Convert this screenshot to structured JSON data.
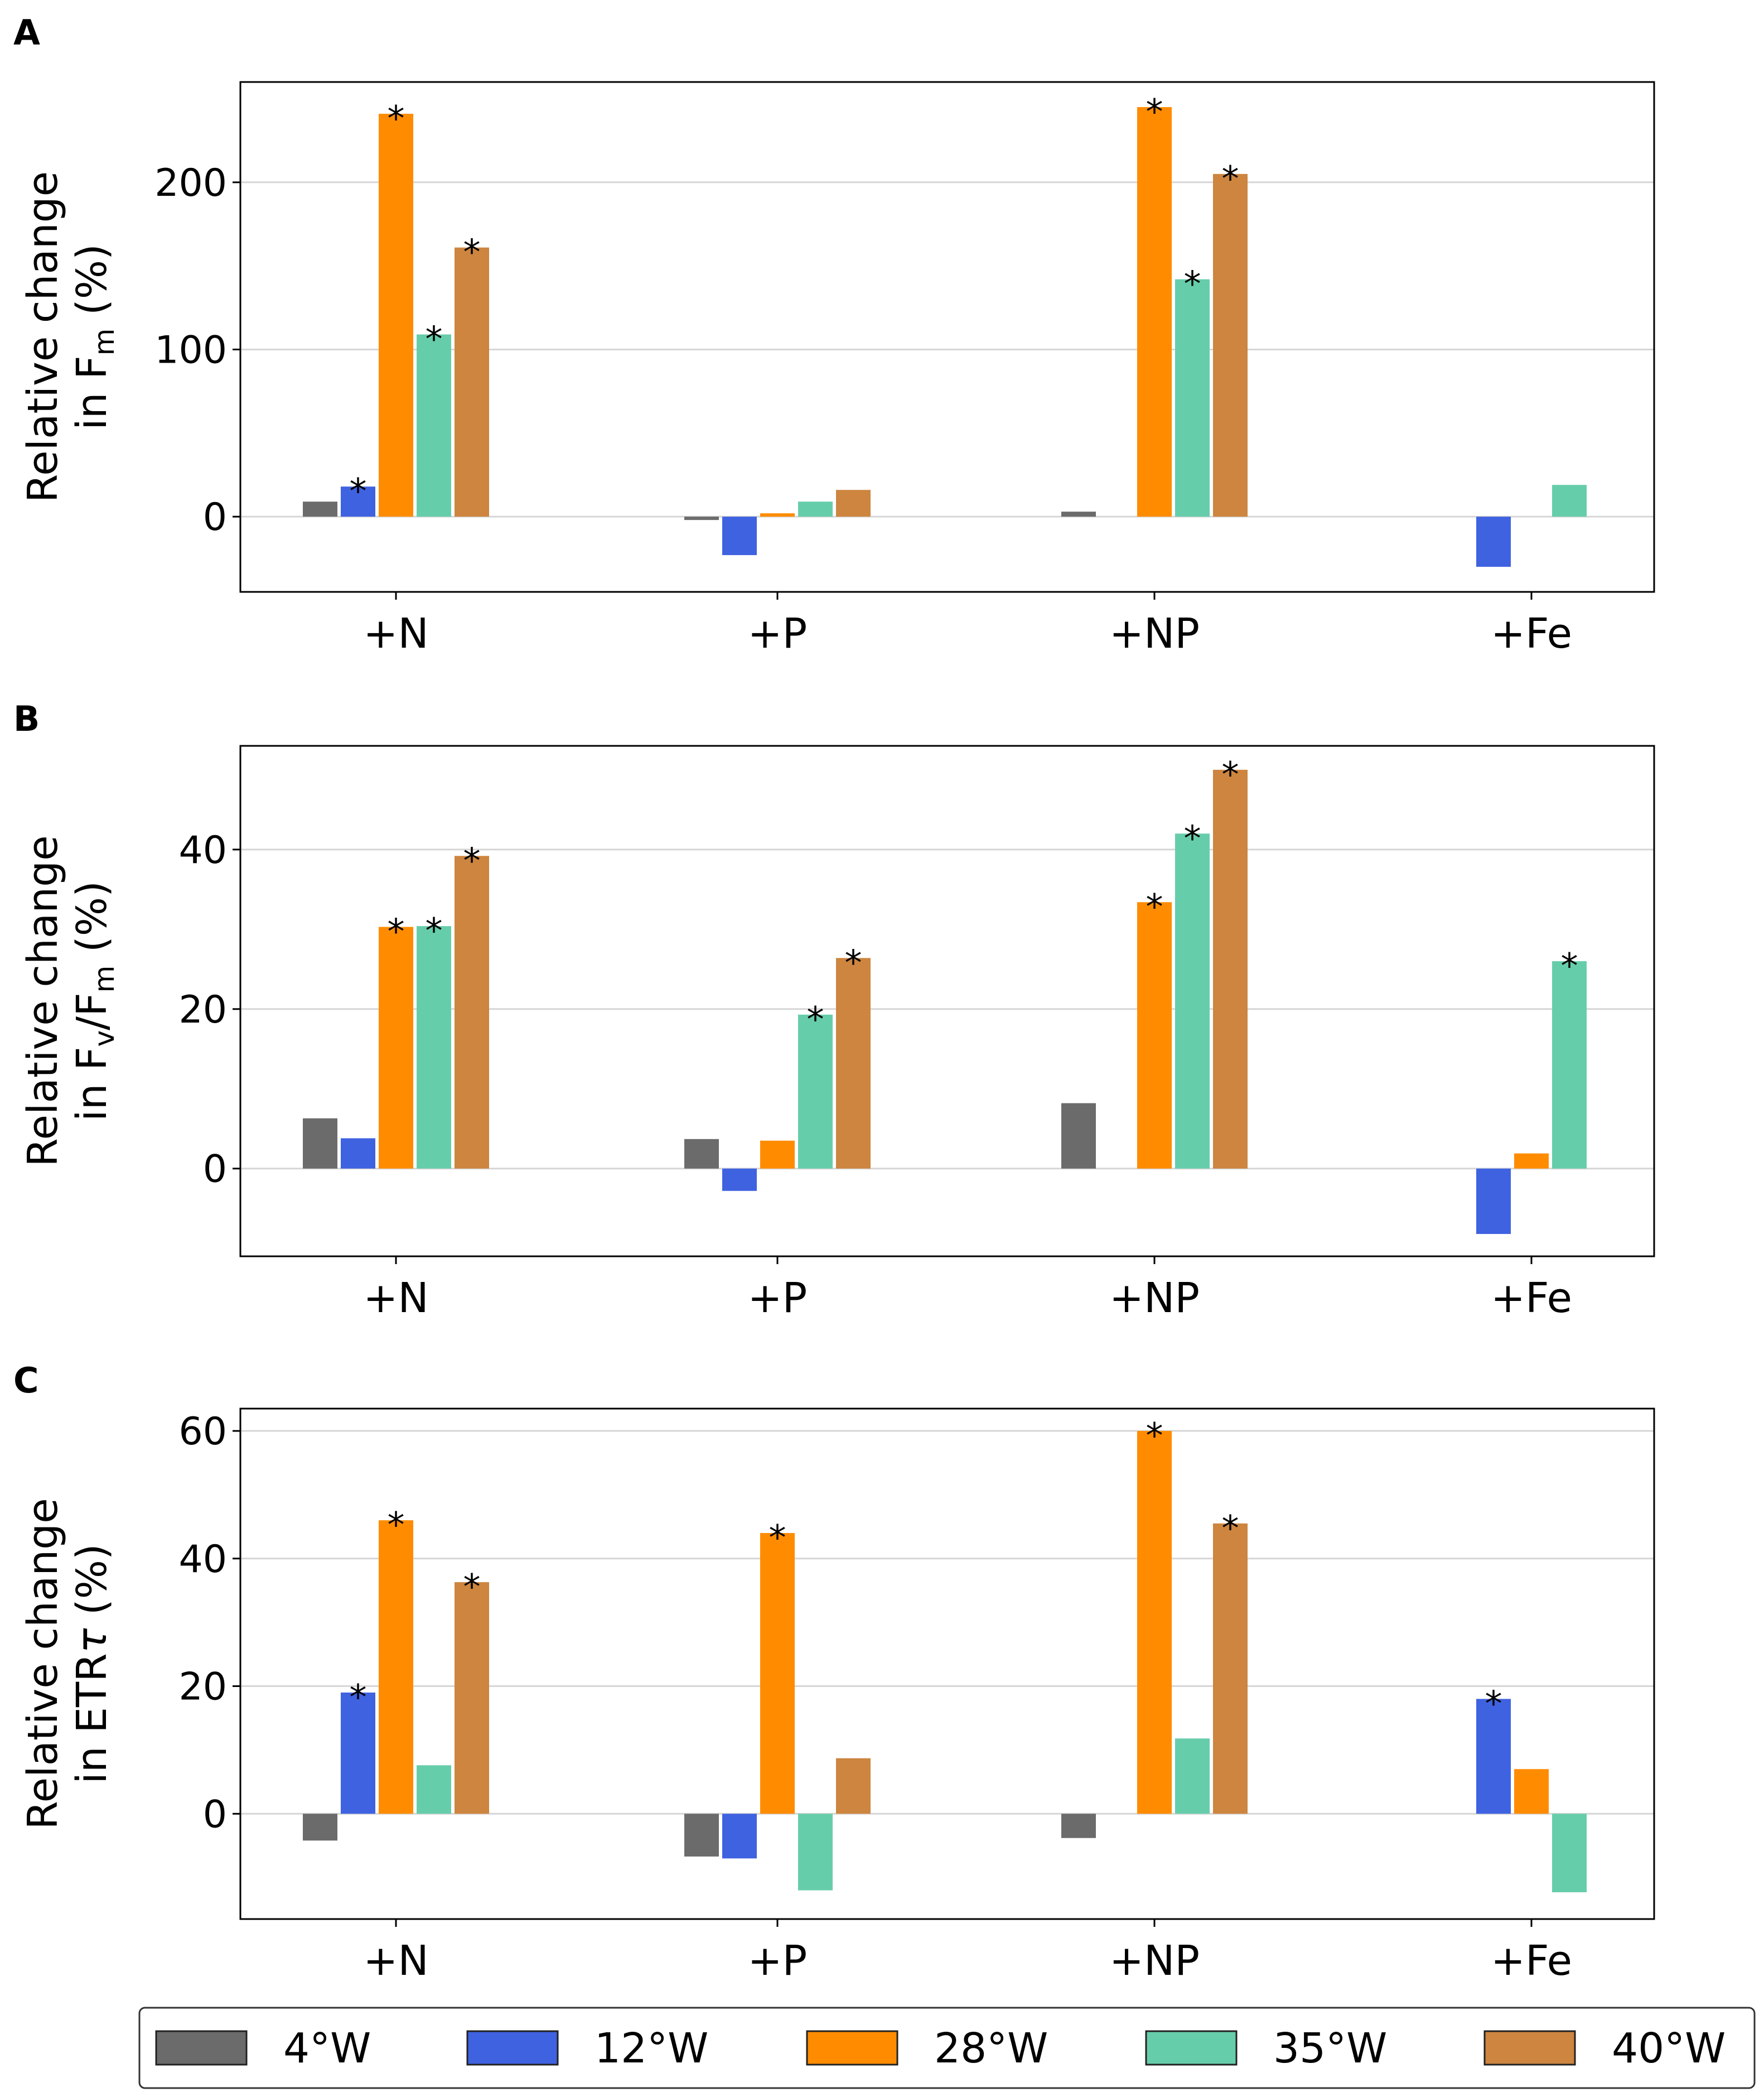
{
  "legend": {
    "items": [
      {
        "label": "4°W",
        "color": "#6b6b6b"
      },
      {
        "label": "12°W",
        "color": "#3f62e0"
      },
      {
        "label": "28°W",
        "color": "#ff8c00"
      },
      {
        "label": "35°W",
        "color": "#66cdaa"
      },
      {
        "label": "40°W",
        "color": "#cd853f"
      }
    ]
  },
  "chart_data": [
    {
      "type": "bar",
      "panel": "A",
      "ylabel": "Relative change",
      "ylabel_line2": {
        "prefix": "in F",
        "sub": "m",
        "suffix": " (%)"
      },
      "categories": [
        "+N",
        "+P",
        "+NP",
        "+Fe"
      ],
      "ylim": [
        -45,
        260
      ],
      "yticks": [
        0,
        100,
        200
      ],
      "series": [
        {
          "name": "4°W",
          "values": [
            9,
            -2,
            3,
            null
          ],
          "sig": [
            false,
            false,
            false,
            false
          ]
        },
        {
          "name": "12°W",
          "values": [
            18,
            -23,
            null,
            -30
          ],
          "sig": [
            true,
            false,
            false,
            false
          ]
        },
        {
          "name": "28°W",
          "values": [
            241,
            2,
            245,
            null
          ],
          "sig": [
            true,
            false,
            true,
            false
          ]
        },
        {
          "name": "35°W",
          "values": [
            109,
            9,
            142,
            19
          ],
          "sig": [
            true,
            false,
            true,
            false
          ]
        },
        {
          "name": "40°W",
          "values": [
            161,
            16,
            205,
            null
          ],
          "sig": [
            true,
            false,
            true,
            false
          ]
        }
      ]
    },
    {
      "type": "bar",
      "panel": "B",
      "ylabel": "Relative change",
      "ylabel_line2": {
        "prefix": "in F",
        "sub": "v",
        "mid": "/F",
        "sub2": "m",
        "suffix": " (%)"
      },
      "categories": [
        "+N",
        "+P",
        "+NP",
        "+Fe"
      ],
      "ylim": [
        -11,
        53
      ],
      "yticks": [
        0,
        20,
        40
      ],
      "series": [
        {
          "name": "4°W",
          "values": [
            6.3,
            3.7,
            8.2,
            null
          ],
          "sig": [
            false,
            false,
            false,
            false
          ]
        },
        {
          "name": "12°W",
          "values": [
            3.8,
            -2.8,
            null,
            -8.2
          ],
          "sig": [
            false,
            false,
            false,
            false
          ]
        },
        {
          "name": "28°W",
          "values": [
            30.3,
            3.5,
            33.4,
            1.9
          ],
          "sig": [
            true,
            false,
            true,
            false
          ]
        },
        {
          "name": "35°W",
          "values": [
            30.4,
            19.3,
            42.0,
            26.0
          ],
          "sig": [
            true,
            true,
            true,
            true
          ]
        },
        {
          "name": "40°W",
          "values": [
            39.2,
            26.4,
            50.0,
            null
          ],
          "sig": [
            true,
            true,
            true,
            false
          ]
        }
      ]
    },
    {
      "type": "bar",
      "panel": "C",
      "ylabel": "Relative change",
      "ylabel_line2": {
        "prefix": "in ETR",
        "tau": "τ",
        "suffix": " (%)"
      },
      "categories": [
        "+N",
        "+P",
        "+NP",
        "+Fe"
      ],
      "ylim": [
        -16.5,
        63.5
      ],
      "yticks": [
        0,
        20,
        40,
        60
      ],
      "series": [
        {
          "name": "4°W",
          "values": [
            -4.2,
            -6.7,
            -3.8,
            null
          ],
          "sig": [
            false,
            false,
            false,
            false
          ]
        },
        {
          "name": "12°W",
          "values": [
            19.0,
            -7.0,
            null,
            18.0
          ],
          "sig": [
            true,
            false,
            false,
            true
          ]
        },
        {
          "name": "28°W",
          "values": [
            46.0,
            44.0,
            60.0,
            7.0
          ],
          "sig": [
            true,
            true,
            true,
            false
          ]
        },
        {
          "name": "35°W",
          "values": [
            7.6,
            -12.0,
            11.8,
            -12.3
          ],
          "sig": [
            false,
            false,
            false,
            false
          ]
        },
        {
          "name": "40°W",
          "values": [
            36.3,
            8.7,
            45.5,
            null
          ],
          "sig": [
            true,
            false,
            true,
            false
          ]
        }
      ]
    }
  ]
}
